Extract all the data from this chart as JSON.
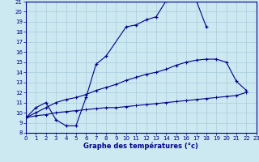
{
  "xlabel": "Graphe des températures (°c)",
  "bg_color": "#cce8f0",
  "line_color": "#00008b",
  "grid_color": "#aaccdd",
  "xmin": 0,
  "xmax": 23,
  "ymin": 8,
  "ymax": 21,
  "curve1_x": [
    0,
    1,
    2,
    3,
    4,
    5,
    6,
    7,
    8,
    10,
    11,
    12,
    13,
    14,
    15,
    16,
    17,
    18
  ],
  "curve1_y": [
    9.5,
    10.5,
    11.0,
    9.3,
    8.7,
    8.7,
    11.5,
    14.8,
    15.6,
    18.5,
    18.7,
    19.2,
    19.5,
    21.1,
    21.2,
    21.2,
    21.1,
    18.5
  ],
  "curve2_x": [
    0,
    1,
    2,
    3,
    4,
    5,
    6,
    7,
    8,
    9,
    10,
    11,
    12,
    13,
    14,
    15,
    16,
    17,
    18,
    19,
    20,
    21,
    22
  ],
  "curve2_y": [
    9.5,
    10.0,
    10.5,
    11.0,
    11.3,
    11.5,
    11.8,
    12.2,
    12.5,
    12.8,
    13.2,
    13.5,
    13.8,
    14.0,
    14.3,
    14.7,
    15.0,
    15.2,
    15.3,
    15.3,
    15.0,
    13.1,
    12.2
  ],
  "curve3_x": [
    0,
    1,
    2,
    3,
    4,
    5,
    6,
    7,
    8,
    9,
    10,
    11,
    12,
    13,
    14,
    15,
    16,
    17,
    18,
    19,
    20,
    21,
    22
  ],
  "curve3_y": [
    9.5,
    9.7,
    9.8,
    10.0,
    10.1,
    10.2,
    10.3,
    10.4,
    10.5,
    10.5,
    10.6,
    10.7,
    10.8,
    10.9,
    11.0,
    11.1,
    11.2,
    11.3,
    11.4,
    11.5,
    11.6,
    11.7,
    12.0
  ],
  "yticks": [
    8,
    9,
    10,
    11,
    12,
    13,
    14,
    15,
    16,
    17,
    18,
    19,
    20,
    21
  ],
  "xticks": [
    0,
    1,
    2,
    3,
    4,
    5,
    6,
    7,
    8,
    9,
    10,
    11,
    12,
    13,
    14,
    15,
    16,
    17,
    18,
    19,
    20,
    21,
    22,
    23
  ]
}
